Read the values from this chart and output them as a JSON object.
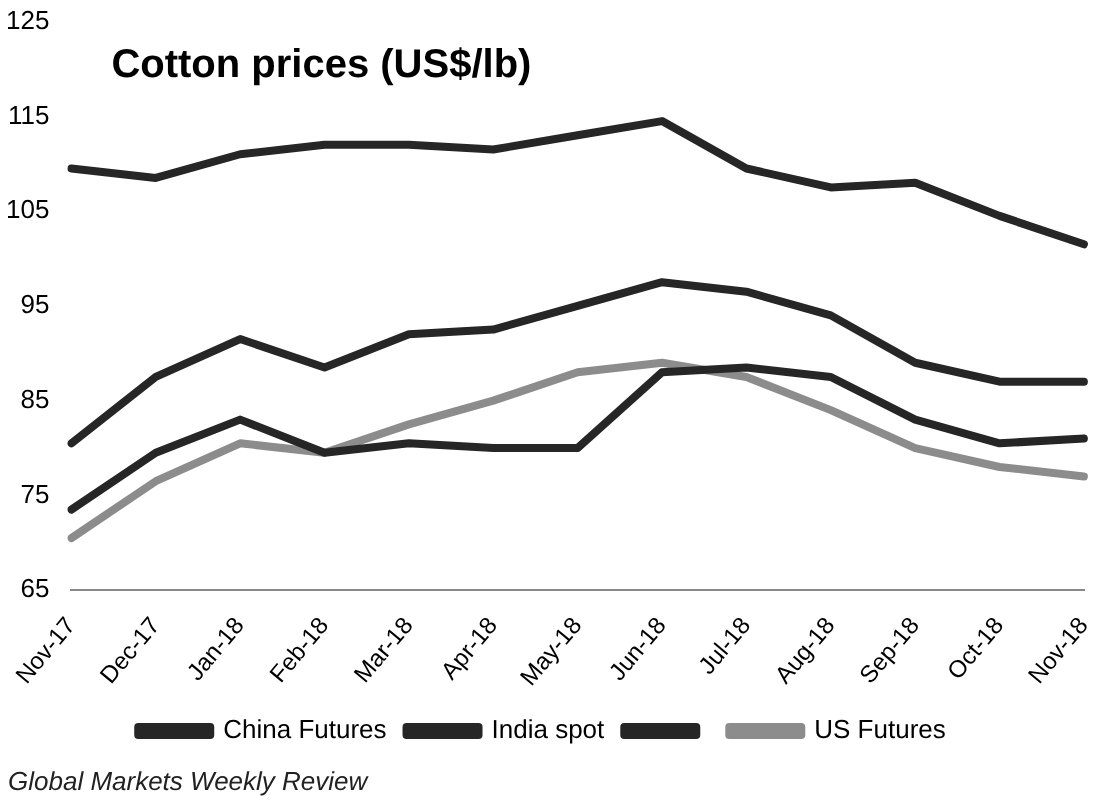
{
  "chart_data": {
    "type": "line",
    "title": "Cotton prices (US$/lb)",
    "categories": [
      "Nov-17",
      "Dec-17",
      "Jan-18",
      "Feb-18",
      "Mar-18",
      "Apr-18",
      "May-18",
      "Jun-18",
      "Jul-18",
      "Aug-18",
      "Sep-18",
      "Oct-18",
      "Nov-18"
    ],
    "series": [
      {
        "name": "China Futures",
        "color": "#262626",
        "values": [
          109.5,
          108.5,
          111,
          112,
          112,
          111.5,
          113,
          114.5,
          109.5,
          107.5,
          108,
          104.5,
          101.5
        ]
      },
      {
        "name": "India spot",
        "color": "#262626",
        "values": [
          73.5,
          79.5,
          83,
          79.5,
          80.5,
          80,
          80,
          88,
          88.5,
          87.5,
          83,
          80.5,
          81
        ]
      },
      {
        "color": "#262626",
        "values": [
          80.5,
          87.5,
          91.5,
          88.5,
          92,
          92.5,
          95,
          97.5,
          96.5,
          94,
          89,
          87,
          87
        ]
      },
      {
        "name": "US Futures",
        "color": "#8c8c8c",
        "values": [
          70.5,
          76.5,
          80.5,
          79.5,
          82.5,
          85,
          88,
          89,
          87.5,
          84,
          80,
          78,
          77
        ]
      }
    ],
    "ylim": [
      65,
      125
    ],
    "yticks": [
      65,
      75,
      85,
      95,
      105,
      115,
      125
    ],
    "grid": false,
    "legend": "bottom",
    "marker": "none",
    "line_style": "solid",
    "annotations": [
      "Global Markets Weekly Review"
    ]
  }
}
